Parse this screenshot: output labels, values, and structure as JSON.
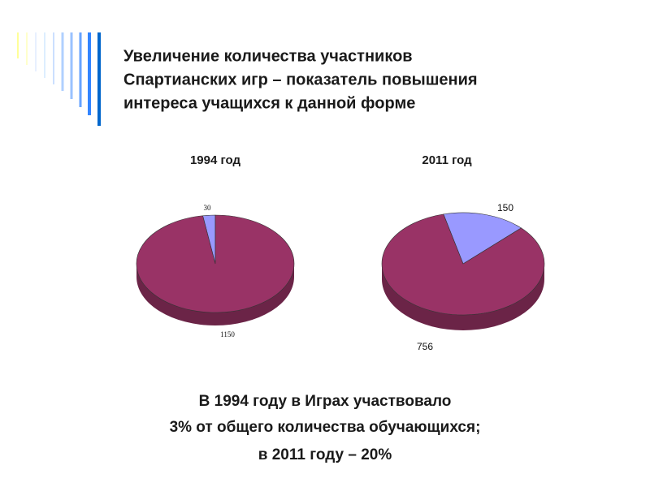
{
  "title_lines": [
    "Увеличение количества участников",
    "Спартианских игр – показатель повышения",
    "интереса учащихся к данной форме"
  ],
  "chart_data": [
    {
      "type": "pie",
      "title": "1994 год",
      "values": [
        30,
        1150
      ],
      "colors": [
        "#9999ff",
        "#993366"
      ]
    },
    {
      "type": "pie",
      "title": "2011 год",
      "values": [
        150,
        756
      ],
      "colors": [
        "#9999ff",
        "#993366"
      ]
    }
  ],
  "caption_lines": [
    "В 1994 году в Играх участвовало",
    "3% от общего количества обучающихся;",
    "в 2011 году – 20%"
  ]
}
